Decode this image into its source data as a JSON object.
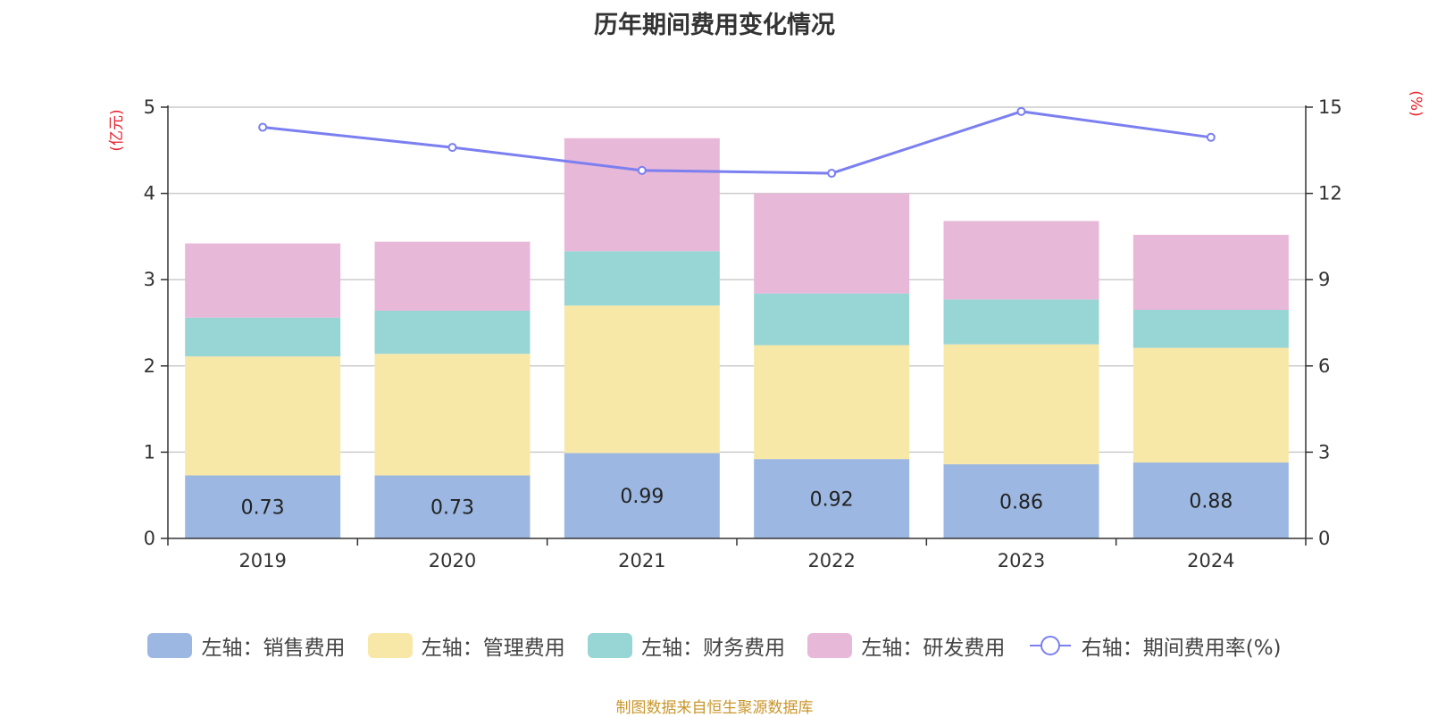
{
  "chart_data": {
    "type": "bar",
    "title": "历年期间费用变化情况",
    "categories": [
      "2019",
      "2020",
      "2021",
      "2022",
      "2023",
      "2024"
    ],
    "left_axis": {
      "unit": "(亿元)",
      "ylim": [
        0,
        5
      ],
      "ticks": [
        "0",
        "1",
        "2",
        "3",
        "4",
        "5"
      ]
    },
    "right_axis": {
      "unit": "(%)",
      "ylim": [
        0,
        15
      ],
      "ticks": [
        "0",
        "3",
        "6",
        "9",
        "12",
        "15"
      ]
    },
    "grid": true,
    "legend_placement": "bottom",
    "series": [
      {
        "name": "左轴：销售费用",
        "type": "bar",
        "stack": true,
        "axis": "left",
        "color": "#9cb8e2",
        "values": [
          0.73,
          0.73,
          0.99,
          0.92,
          0.86,
          0.88
        ],
        "labels": [
          "0.73",
          "0.73",
          "0.99",
          "0.92",
          "0.86",
          "0.88"
        ]
      },
      {
        "name": "左轴：管理费用",
        "type": "bar",
        "stack": true,
        "axis": "left",
        "color": "#f8e8a8",
        "values": [
          1.38,
          1.41,
          1.71,
          1.32,
          1.39,
          1.33
        ]
      },
      {
        "name": "左轴：财务费用",
        "type": "bar",
        "stack": true,
        "axis": "left",
        "color": "#98d5d5",
        "values": [
          0.45,
          0.5,
          0.63,
          0.6,
          0.52,
          0.44
        ]
      },
      {
        "name": "左轴：研发费用",
        "type": "bar",
        "stack": true,
        "axis": "left",
        "color": "#e8b8d8",
        "values": [
          0.86,
          0.8,
          1.31,
          1.16,
          0.91,
          0.87
        ]
      },
      {
        "name": "右轴：期间费用率(%)",
        "type": "line",
        "axis": "right",
        "color": "#7b7ff0",
        "values": [
          14.3,
          13.6,
          12.8,
          12.7,
          14.85,
          13.95
        ]
      }
    ]
  },
  "source_note": "制图数据来自恒生聚源数据库"
}
